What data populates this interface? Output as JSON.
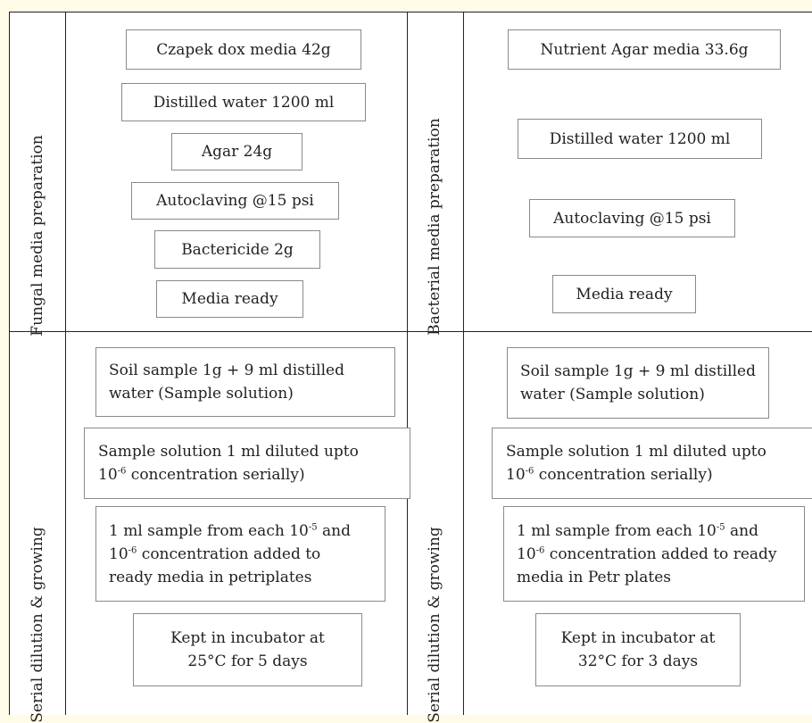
{
  "sections": {
    "fungal_prep": "Fungal media preparation",
    "bacterial_prep": "Bacterial media preparation",
    "fungal_growth": "Serial dilution & growing",
    "bacterial_growth": "Serial dilution & growing"
  },
  "fungal_prep_steps": [
    "Czapek dox media 42g",
    "Distilled water 1200 ml",
    "Agar 24g",
    "Autoclaving @15 psi",
    "Bactericide 2g",
    "Media ready"
  ],
  "bacterial_prep_steps": [
    "Nutrient Agar media 33.6g",
    "Distilled water 1200 ml",
    "Autoclaving @15 psi",
    "Media ready"
  ],
  "fungal_growth_steps": {
    "step1_line1": "Soil sample 1g + 9 ml distilled",
    "step1_line2": "water (Sample solution)",
    "step2_line1": "Sample solution 1 ml diluted upto",
    "step2_line2_pre": "10",
    "step2_line2_sup": "-6",
    "step2_line2_post": " concentration serially)",
    "step3_line1_pre": "1 ml sample from each 10",
    "step3_line1_sup": "-5",
    "step3_line1_post": " and",
    "step3_line2_pre": "10",
    "step3_line2_sup": "-6",
    "step3_line2_post": " concentration added to",
    "step3_line3": "ready media in petriplates",
    "step4_line1": "Kept in incubator at",
    "step4_line2": "25°C for 5 days"
  },
  "bacterial_growth_steps": {
    "step1_line1": "Soil sample 1g + 9 ml distilled",
    "step1_line2": "water (Sample solution)",
    "step2_line1": "Sample solution 1 ml diluted upto",
    "step2_line2_pre": "10",
    "step2_line2_sup": "-6",
    "step2_line2_post": " concentration serially)",
    "step3_line1_pre": "1 ml sample from each 10",
    "step3_line1_sup": "-5",
    "step3_line1_post": " and",
    "step3_line2_pre": "10",
    "step3_line2_sup": "-6",
    "step3_line2_post": " concentration added to ready",
    "step3_line3": "media in Petr plates",
    "step4_line1": "Kept in incubator at",
    "step4_line2": "32°C for 3 days"
  }
}
